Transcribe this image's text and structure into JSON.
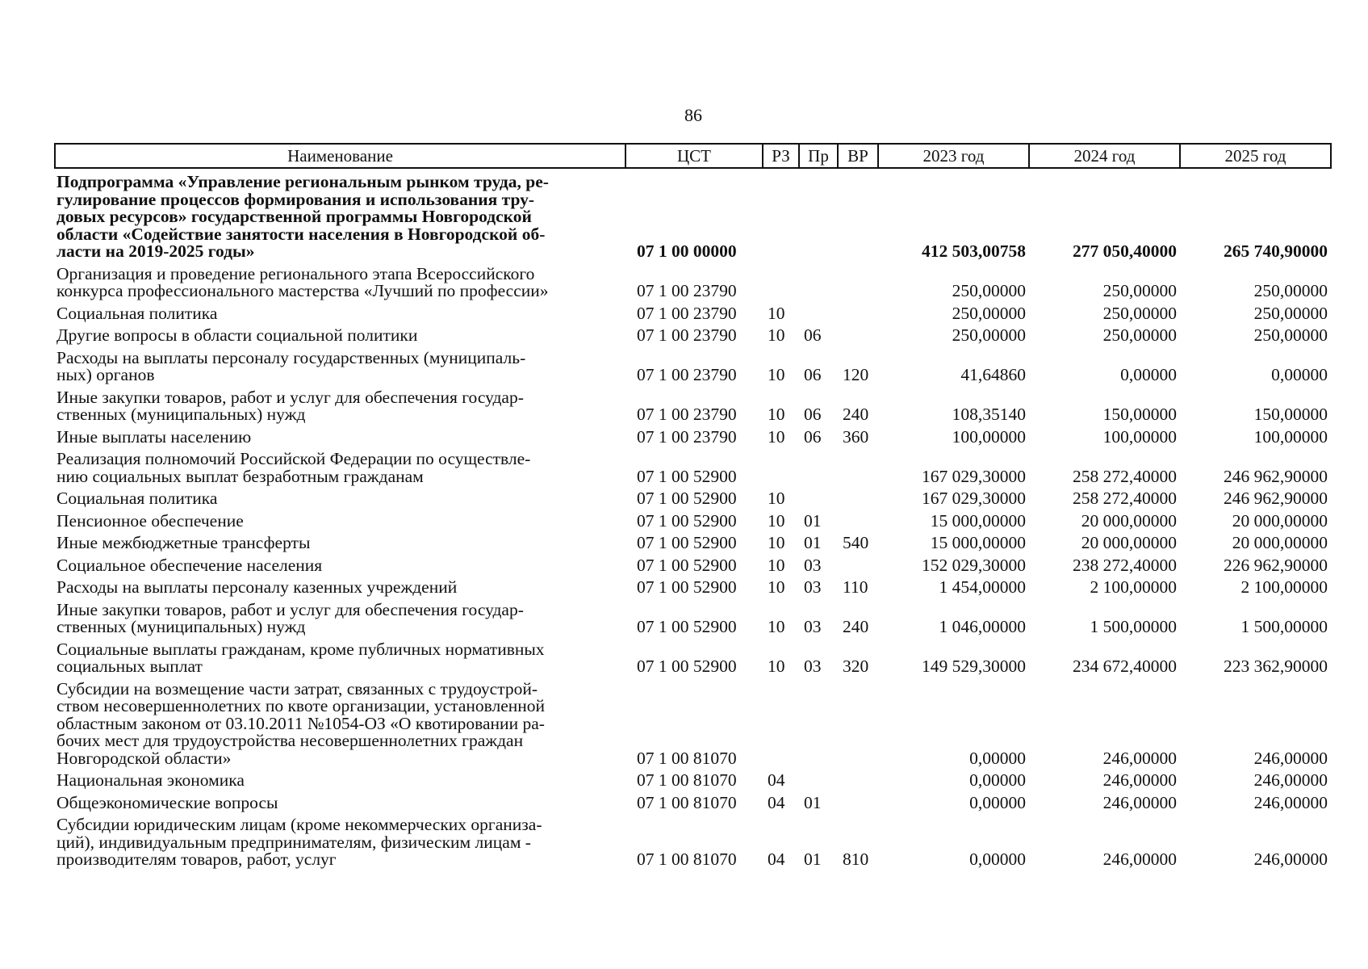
{
  "page_number": "86",
  "header": [
    "Наименование",
    "ЦСТ",
    "РЗ",
    "Пр",
    "ВР",
    "2023 год",
    "2024 год",
    "2025 год"
  ],
  "rows": [
    {
      "bold": true,
      "name": [
        "Подпрограмма «Управление региональным рынком труда, ре-",
        "гулирование процессов формирования и использования тру-",
        "довых ресурсов» государственной программы Новгородской",
        "области «Содействие занятости населения в Новгородской об-",
        "ласти на 2019-2025 годы»"
      ],
      "cst": "07 1 00 00000",
      "rz": "",
      "pr": "",
      "vr": "",
      "y2023": "412 503,00758",
      "y2024": "277 050,40000",
      "y2025": "265 740,90000"
    },
    {
      "name": [
        "Организация и проведение регионального этапа Всероссийского",
        "конкурса профессионального мастерства «Лучший по профессии»"
      ],
      "cst": "07 1 00 23790",
      "rz": "",
      "pr": "",
      "vr": "",
      "y2023": "250,00000",
      "y2024": "250,00000",
      "y2025": "250,00000"
    },
    {
      "name": [
        "Социальная политика"
      ],
      "cst": "07 1 00 23790",
      "rz": "10",
      "pr": "",
      "vr": "",
      "y2023": "250,00000",
      "y2024": "250,00000",
      "y2025": "250,00000"
    },
    {
      "name": [
        "Другие вопросы в области социальной политики"
      ],
      "cst": "07 1 00 23790",
      "rz": "10",
      "pr": "06",
      "vr": "",
      "y2023": "250,00000",
      "y2024": "250,00000",
      "y2025": "250,00000"
    },
    {
      "name": [
        "Расходы на выплаты персоналу государственных (муниципаль-",
        "ных) органов"
      ],
      "cst": "07 1 00 23790",
      "rz": "10",
      "pr": "06",
      "vr": "120",
      "y2023": "41,64860",
      "y2024": "0,00000",
      "y2025": "0,00000"
    },
    {
      "name": [
        "Иные закупки товаров, работ и услуг для обеспечения государ-",
        "ственных (муниципальных) нужд"
      ],
      "cst": "07 1 00 23790",
      "rz": "10",
      "pr": "06",
      "vr": "240",
      "y2023": "108,35140",
      "y2024": "150,00000",
      "y2025": "150,00000"
    },
    {
      "name": [
        "Иные выплаты населению"
      ],
      "cst": "07 1 00 23790",
      "rz": "10",
      "pr": "06",
      "vr": "360",
      "y2023": "100,00000",
      "y2024": "100,00000",
      "y2025": "100,00000"
    },
    {
      "name": [
        "Реализация полномочий Российской Федерации по осуществле-",
        "нию социальных выплат безработным гражданам"
      ],
      "cst": "07 1 00 52900",
      "rz": "",
      "pr": "",
      "vr": "",
      "y2023": "167 029,30000",
      "y2024": "258 272,40000",
      "y2025": "246 962,90000"
    },
    {
      "name": [
        "Социальная политика"
      ],
      "cst": "07 1 00 52900",
      "rz": "10",
      "pr": "",
      "vr": "",
      "y2023": "167 029,30000",
      "y2024": "258 272,40000",
      "y2025": "246 962,90000"
    },
    {
      "name": [
        "Пенсионное обеспечение"
      ],
      "cst": "07 1 00 52900",
      "rz": "10",
      "pr": "01",
      "vr": "",
      "y2023": "15 000,00000",
      "y2024": "20 000,00000",
      "y2025": "20 000,00000"
    },
    {
      "name": [
        "Иные межбюджетные трансферты"
      ],
      "cst": "07 1 00 52900",
      "rz": "10",
      "pr": "01",
      "vr": "540",
      "y2023": "15 000,00000",
      "y2024": "20 000,00000",
      "y2025": "20 000,00000"
    },
    {
      "name": [
        "Социальное обеспечение населения"
      ],
      "cst": "07 1 00 52900",
      "rz": "10",
      "pr": "03",
      "vr": "",
      "y2023": "152 029,30000",
      "y2024": "238 272,40000",
      "y2025": "226 962,90000"
    },
    {
      "name": [
        "Расходы на выплаты персоналу казенных учреждений"
      ],
      "cst": "07 1 00 52900",
      "rz": "10",
      "pr": "03",
      "vr": "110",
      "y2023": "1 454,00000",
      "y2024": "2 100,00000",
      "y2025": "2 100,00000"
    },
    {
      "name": [
        "Иные закупки товаров, работ и услуг для обеспечения государ-",
        "ственных (муниципальных) нужд"
      ],
      "cst": "07 1 00 52900",
      "rz": "10",
      "pr": "03",
      "vr": "240",
      "y2023": "1 046,00000",
      "y2024": "1 500,00000",
      "y2025": "1 500,00000"
    },
    {
      "name": [
        "Социальные выплаты гражданам, кроме публичных нормативных",
        "социальных выплат"
      ],
      "cst": "07 1 00 52900",
      "rz": "10",
      "pr": "03",
      "vr": "320",
      "y2023": "149 529,30000",
      "y2024": "234 672,40000",
      "y2025": "223 362,90000"
    },
    {
      "name": [
        "Субсидии на возмещение части затрат, связанных с трудоустрой-",
        "ством несовершеннолетних по квоте организации, установленной",
        "областным законом от 03.10.2011 №1054-ОЗ «О квотировании ра-",
        "бочих мест для трудоустройства несовершеннолетних граждан",
        "Новгородской области»"
      ],
      "cst": "07 1 00 81070",
      "rz": "",
      "pr": "",
      "vr": "",
      "y2023": "0,00000",
      "y2024": "246,00000",
      "y2025": "246,00000"
    },
    {
      "name": [
        "Национальная экономика"
      ],
      "cst": "07 1 00 81070",
      "rz": "04",
      "pr": "",
      "vr": "",
      "y2023": "0,00000",
      "y2024": "246,00000",
      "y2025": "246,00000"
    },
    {
      "name": [
        "Общеэкономические вопросы"
      ],
      "cst": "07 1 00 81070",
      "rz": "04",
      "pr": "01",
      "vr": "",
      "y2023": "0,00000",
      "y2024": "246,00000",
      "y2025": "246,00000"
    },
    {
      "name": [
        "Субсидии юридическим лицам (кроме некоммерческих организа-",
        "ций), индивидуальным предпринимателям, физическим лицам -",
        "производителям товаров, работ, услуг"
      ],
      "cst": "07 1 00 81070",
      "rz": "04",
      "pr": "01",
      "vr": "810",
      "y2023": "0,00000",
      "y2024": "246,00000",
      "y2025": "246,00000"
    }
  ]
}
